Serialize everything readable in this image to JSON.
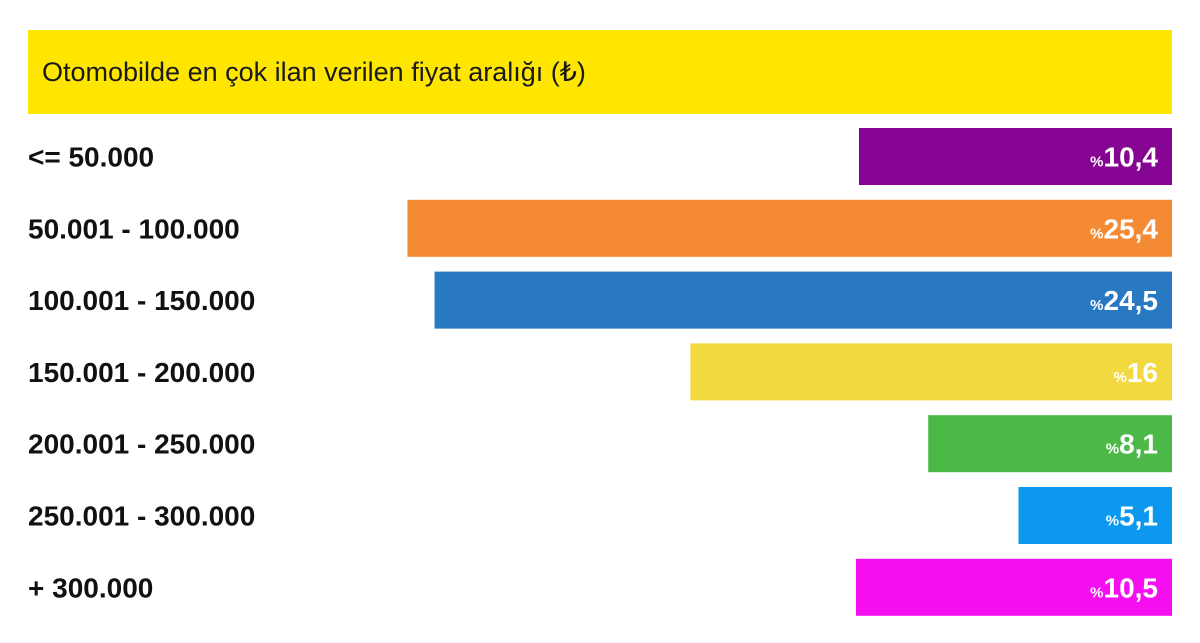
{
  "chart_data": {
    "type": "bar",
    "orientation": "horizontal",
    "title": "Otomobilde en çok ilan verilen fiyat aralığı (₺)",
    "categories": [
      "<= 50.000",
      "50.001 - 100.000",
      "100.001 - 150.000",
      "150.001 - 200.000",
      "200.001 - 250.000",
      "250.001 - 300.000",
      "+ 300.000"
    ],
    "values": [
      10.4,
      25.4,
      24.5,
      16,
      8.1,
      5.1,
      10.5
    ],
    "value_labels": [
      "10,4",
      "25,4",
      "24,5",
      "16",
      "8,1",
      "5,1",
      "10,5"
    ],
    "value_prefix": "%",
    "colors": [
      "#850491",
      "#f58a34",
      "#2878c2",
      "#f2d940",
      "#4cb848",
      "#0b98ee",
      "#f50ff0"
    ],
    "title_bar_color": "#ffe600",
    "bars_aligned": "right",
    "grid": false,
    "legend": "none"
  }
}
